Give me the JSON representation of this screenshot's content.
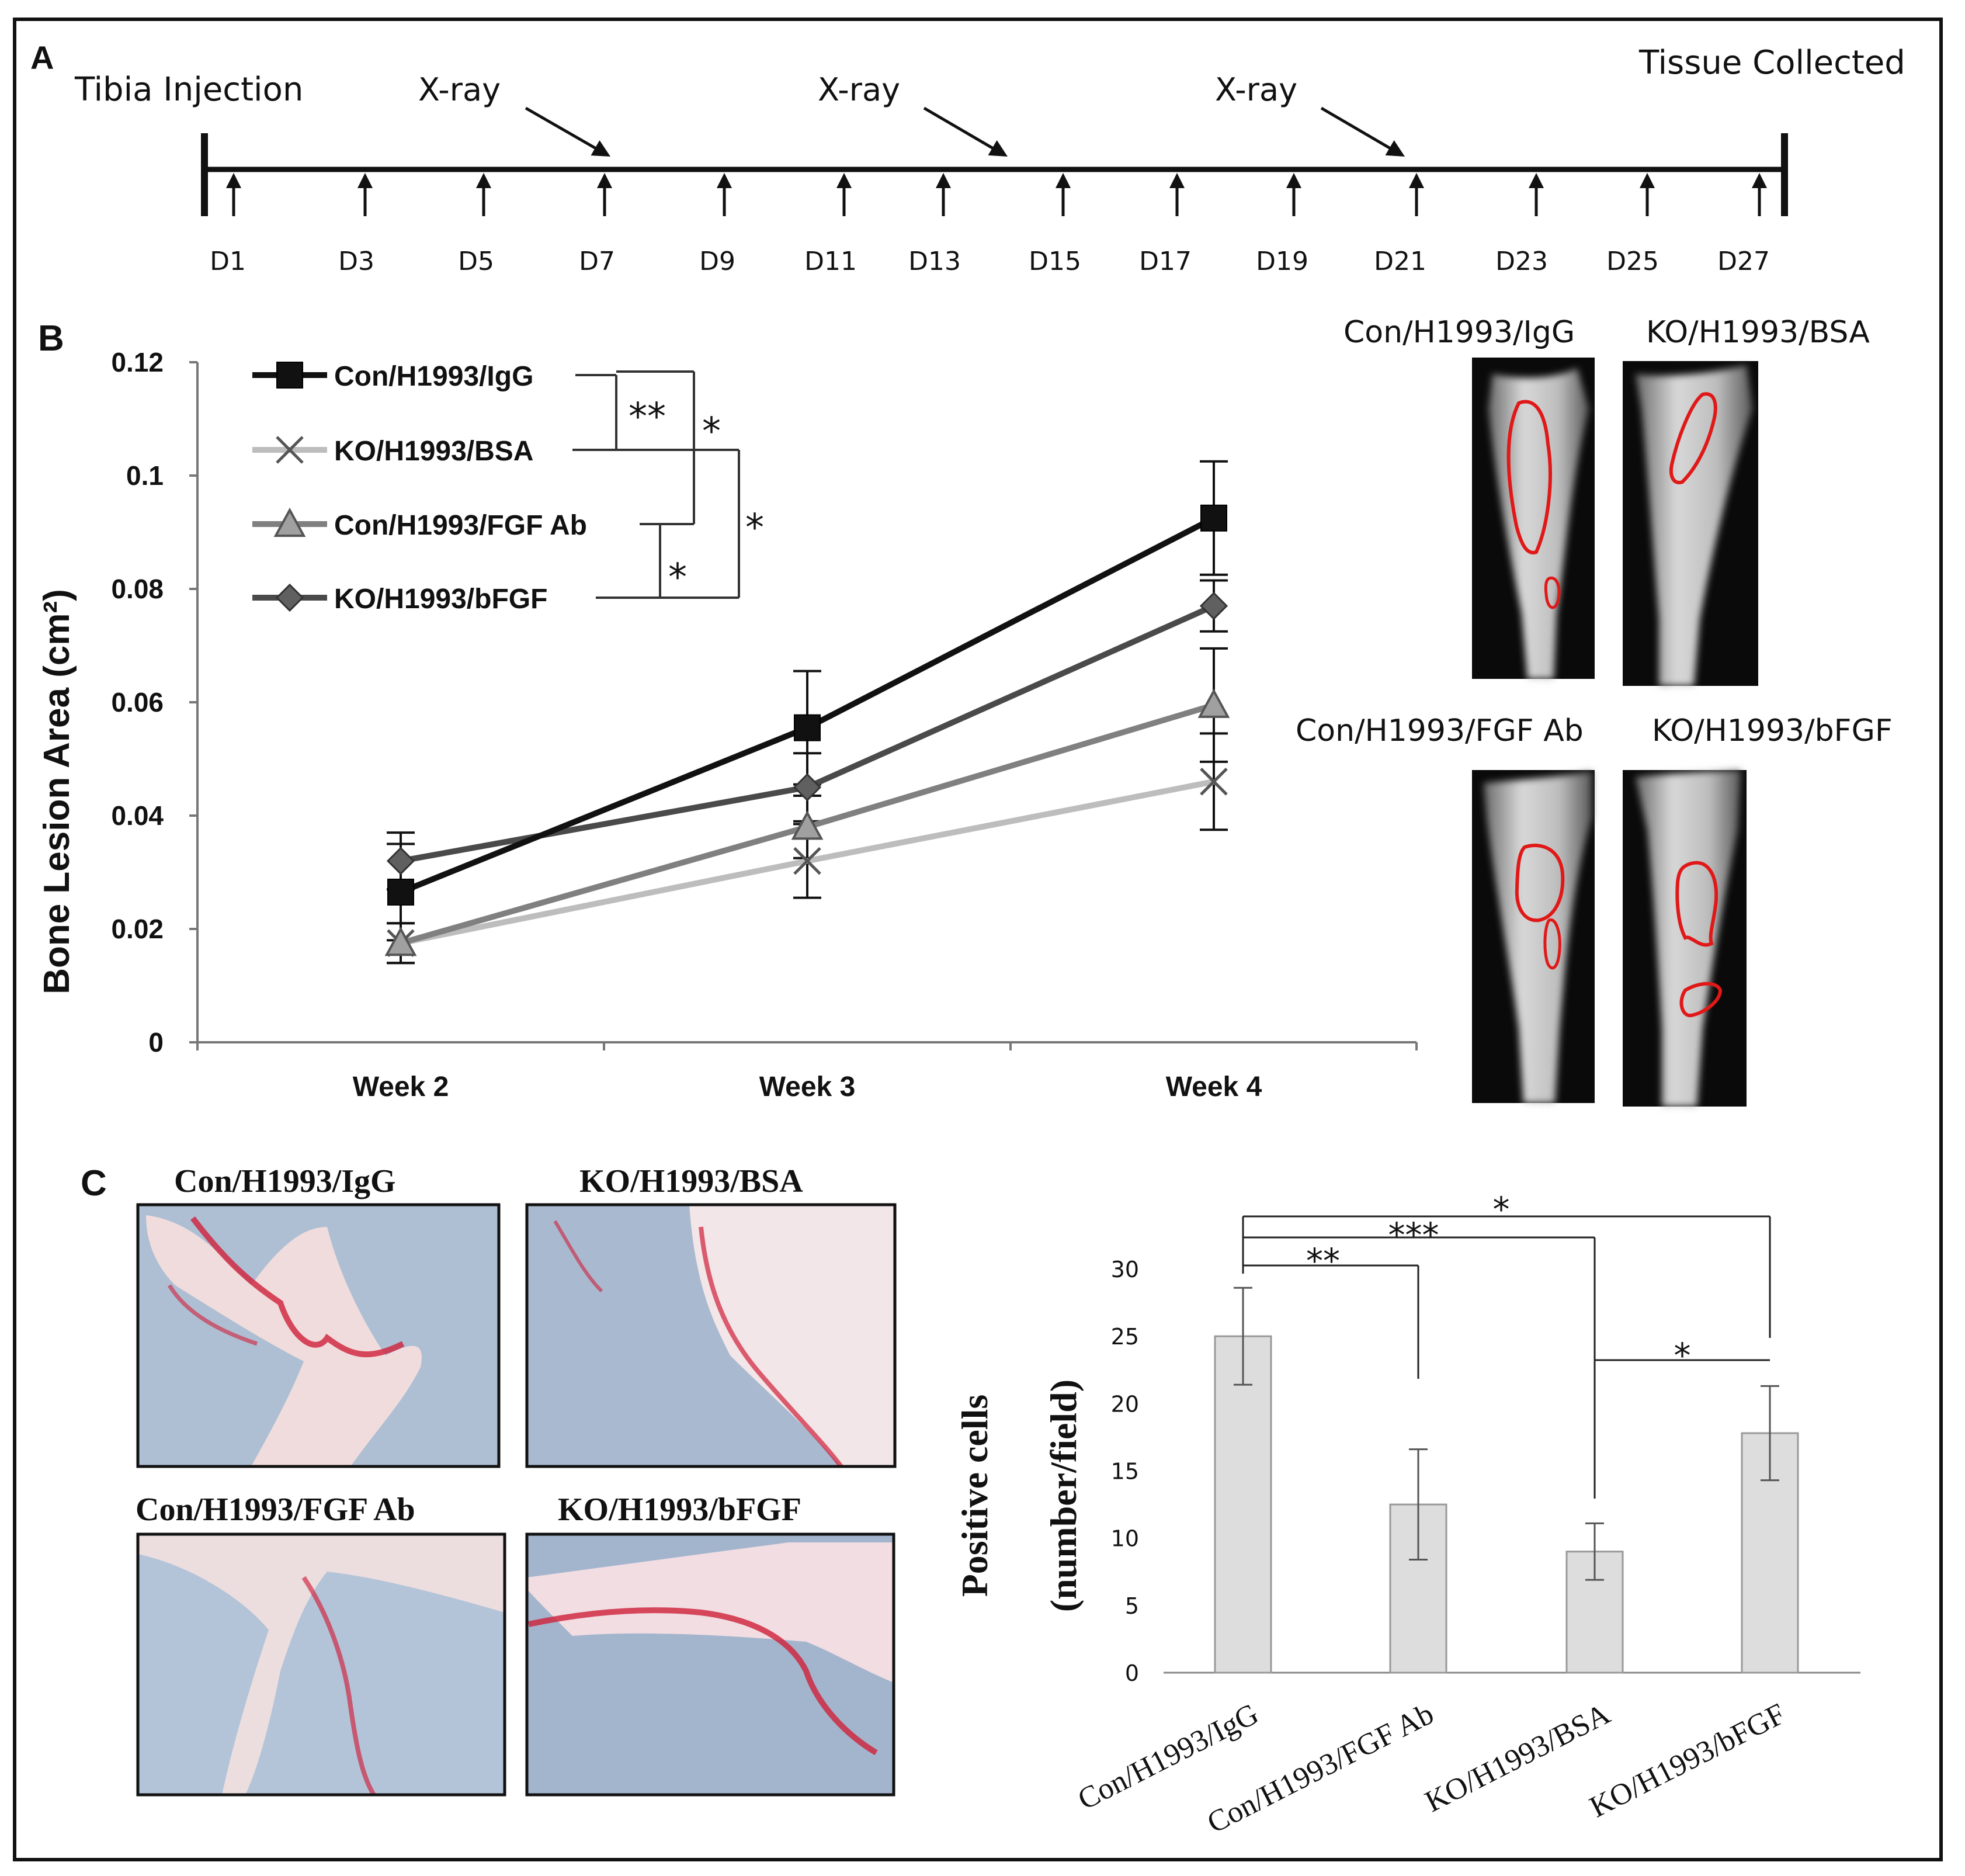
{
  "panel_letters": {
    "a": "A",
    "b": "B",
    "c": "C"
  },
  "timeline": {
    "start_label": "Tibia Injection",
    "end_label": "Tissue Collected",
    "xray_label": "X-ray",
    "days": [
      "D1",
      "D3",
      "D5",
      "D7",
      "D9",
      "D11",
      "D13",
      "D15",
      "D17",
      "D19",
      "D21",
      "D23",
      "D25",
      "D27"
    ]
  },
  "stats": {
    "one": "*",
    "two": "**",
    "three": "***"
  },
  "xray_images": {
    "labels": [
      "Con/H1993/IgG",
      "KO/H1993/BSA",
      "Con/H1993/FGF  Ab",
      "KO/H1993/bFGF"
    ]
  },
  "histology": {
    "labels": [
      "Con/H1993/IgG",
      "KO/H1993/BSA",
      "Con/H1993/FGF Ab",
      "KO/H1993/bFGF"
    ]
  },
  "chart_data": [
    {
      "type": "line",
      "xlabel": "",
      "ylabel": "Bone Lesion Area (cm²)",
      "categories": [
        "Week 2",
        "Week 3",
        "Week 4"
      ],
      "ylim": [
        0,
        0.12
      ],
      "yticks": [
        "0",
        "0.02",
        "0.04",
        "0.06",
        "0.08",
        "0.1",
        "0.12"
      ],
      "legend_position": "top-left",
      "series": [
        {
          "name": "Con/H1993/IgG",
          "marker": "square",
          "color": "#111111",
          "values": [
            0.0265,
            0.0555,
            0.0925
          ],
          "errors": [
            0.0085,
            0.01,
            0.01
          ]
        },
        {
          "name": "KO/H1993/BSA",
          "marker": "x",
          "color": "#bdbdbd",
          "values": [
            0.0175,
            0.032,
            0.046
          ],
          "errors": [
            0.0035,
            0.0065,
            0.0085
          ]
        },
        {
          "name": "Con/H1993/FGF  Ab",
          "marker": "triangle",
          "color": "#808080",
          "values": [
            0.0175,
            0.038,
            0.0595
          ],
          "errors": [
            0.0035,
            0.0055,
            0.01
          ]
        },
        {
          "name": "KO/H1993/bFGF",
          "marker": "diamond",
          "color": "#4a4a4a",
          "values": [
            0.032,
            0.045,
            0.077
          ],
          "errors": [
            0.005,
            0.006,
            0.0045
          ]
        }
      ]
    },
    {
      "type": "bar",
      "xlabel": "",
      "ylabel": "Positive cells (number/field)",
      "ylabel_lines": [
        "Positive cells",
        "(number/field)"
      ],
      "categories": [
        "Con/H1993/IgG",
        "Con/H1993/FGF Ab",
        "KO/H1993/BSA",
        "KO/H1993/bFGF"
      ],
      "values": [
        25,
        12.5,
        9,
        17.8
      ],
      "errors": [
        3.6,
        4.1,
        2.1,
        3.5
      ],
      "ylim": [
        0,
        30
      ],
      "yticks": [
        "0",
        "5",
        "10",
        "15",
        "20",
        "25",
        "30"
      ],
      "bar_color": "#dddddd"
    }
  ]
}
